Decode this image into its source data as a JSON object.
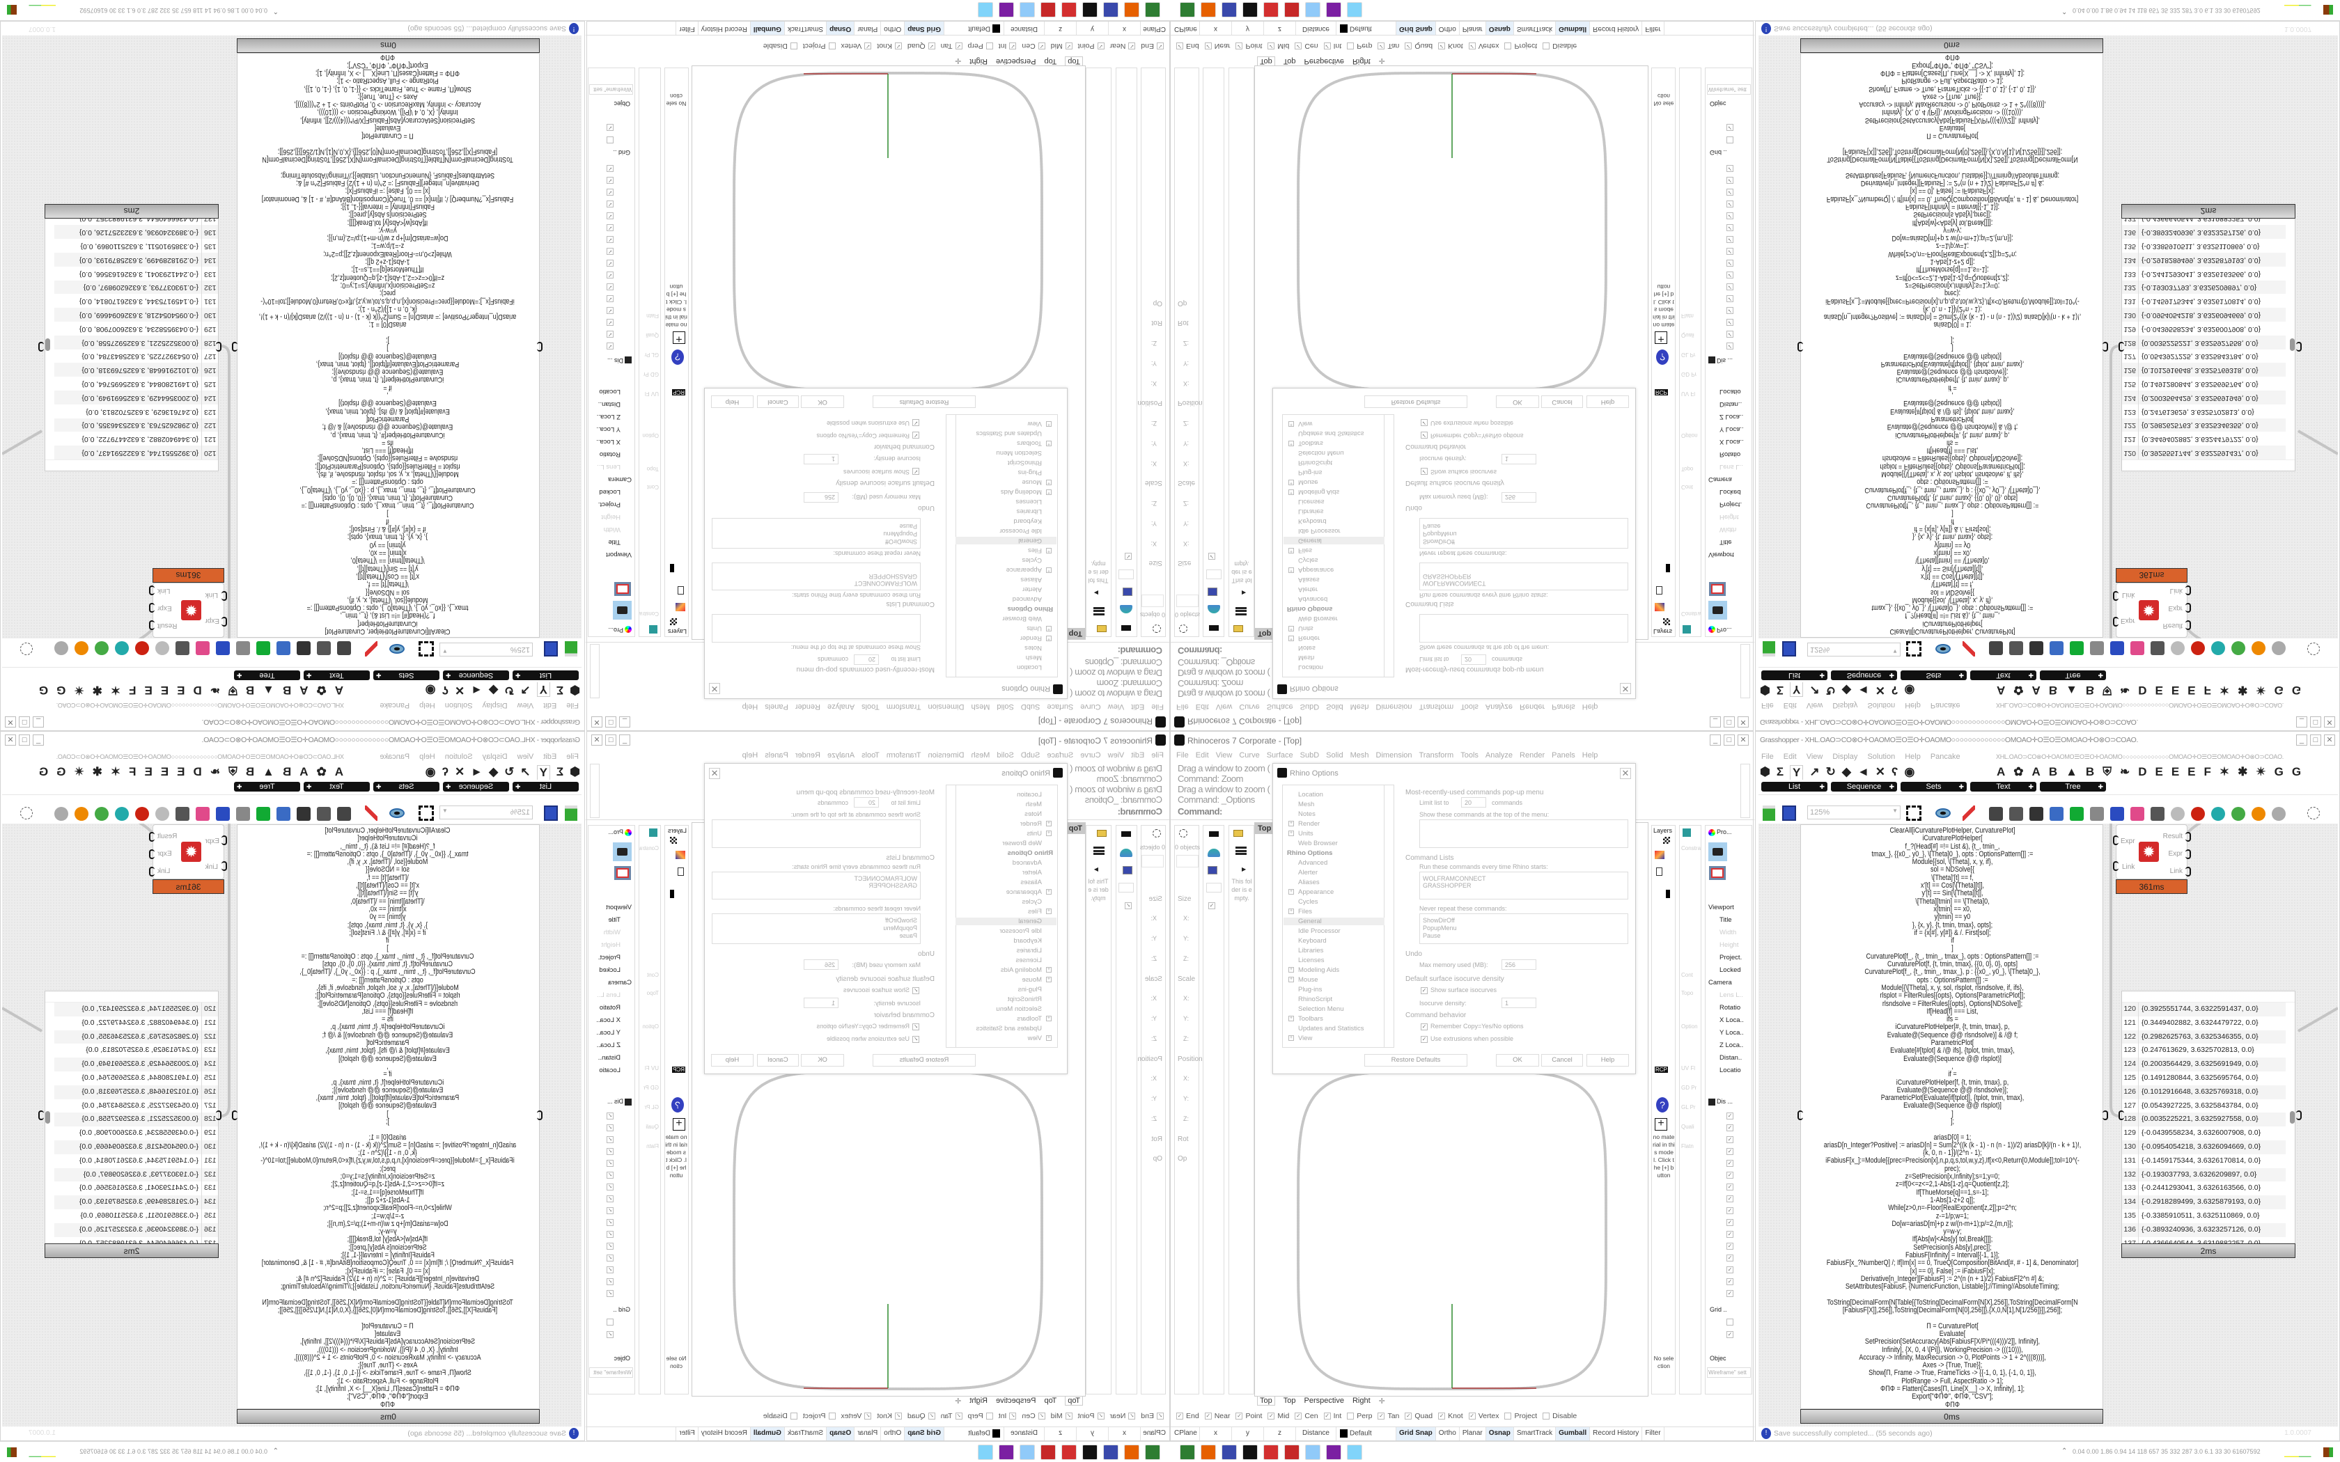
{
  "rhino": {
    "title": "Rhinoceros 7 Corporate - [Top]",
    "menu": [
      "File",
      "Edit",
      "View",
      "Curve",
      "Surface",
      "SubD",
      "Solid",
      "Mesh",
      "Dimension",
      "Transform",
      "Tools",
      "Analyze",
      "Render",
      "Panels",
      "Help"
    ],
    "command_history": [
      "Drag a window to zoom (",
      "Command: Zoom",
      "Drag a window to zoom (",
      "Command: _Options"
    ],
    "command_prompt": "Command:",
    "viewport_label": "Top",
    "viewport_tabs": [
      "Top",
      "Top",
      "Perspective",
      "Right"
    ],
    "left_panels": {
      "object_count": "0 objects",
      "sections": [
        "Size",
        "Scale",
        "Position",
        "Rot",
        "Op"
      ],
      "axes": [
        "X:",
        "Y:",
        "Z:"
      ],
      "folder_empty": "This folder is empty."
    },
    "right_panels": {
      "layers_label": "Layers",
      "materials_label": "RCP",
      "no_material": "no material in this model. Click the [+] button",
      "no_selection": "No selection",
      "constraint_labels": [
        "Constra",
        "Cont",
        "Topo",
        "Option",
        "UV Fl",
        "GD Pr",
        "GL Pr",
        "Quali",
        "Flatn"
      ],
      "properties_tab": "Pro...",
      "properties_items": [
        "Viewport",
        "Title",
        "Width",
        "Height",
        "Project.",
        "Locked",
        "Camera",
        "Lens L..",
        "Rotatio",
        "X Loca..",
        "Y Loca..",
        "Z Loca..",
        "Distan..",
        "Locatio"
      ],
      "display_tab": "Dis ...",
      "grid_label": "Grid ..",
      "objects_label": "Objec",
      "wireframe_label": "Wireframe\" sett"
    },
    "osnaps": [
      {
        "label": "End",
        "checked": true
      },
      {
        "label": "Near",
        "checked": true
      },
      {
        "label": "Point",
        "checked": true
      },
      {
        "label": "Mid",
        "checked": true
      },
      {
        "label": "Cen",
        "checked": true
      },
      {
        "label": "Int",
        "checked": true
      },
      {
        "label": "Perp",
        "checked": false
      },
      {
        "label": "Tan",
        "checked": true
      },
      {
        "label": "Quad",
        "checked": true
      },
      {
        "label": "Knot",
        "checked": true
      },
      {
        "label": "Vertex",
        "checked": true
      },
      {
        "label": "Project",
        "checked": false
      },
      {
        "label": "Disable",
        "checked": false
      }
    ],
    "status_bar": [
      {
        "label": "CPlane",
        "on": false
      },
      {
        "label": "x",
        "on": false
      },
      {
        "label": "y",
        "on": false
      },
      {
        "label": "z",
        "on": false
      },
      {
        "label": "Distance",
        "on": false
      },
      {
        "label": "Default",
        "on": false,
        "swatch": "#000000"
      },
      {
        "label": "Grid Snap",
        "on": true
      },
      {
        "label": "Ortho",
        "on": false
      },
      {
        "label": "Planar",
        "on": false
      },
      {
        "label": "Osnap",
        "on": true
      },
      {
        "label": "SmartTrack",
        "on": false
      },
      {
        "label": "Gumball",
        "on": true
      },
      {
        "label": "Record History",
        "on": false
      },
      {
        "label": "Filter",
        "on": false
      }
    ]
  },
  "options_dialog": {
    "title": "Rhino Options",
    "tree": [
      {
        "label": "Location"
      },
      {
        "label": "Mesh"
      },
      {
        "label": "Notes"
      },
      {
        "label": "Render",
        "expand": true
      },
      {
        "label": "Units",
        "expand": true
      },
      {
        "label": "Web Browser"
      },
      {
        "label": "Rhino Options",
        "header": true
      },
      {
        "label": "Advanced"
      },
      {
        "label": "Alerter"
      },
      {
        "label": "Aliases"
      },
      {
        "label": "Appearance",
        "expand": true
      },
      {
        "label": "Cycles"
      },
      {
        "label": "Files",
        "expand": true
      },
      {
        "label": "General",
        "selected": true
      },
      {
        "label": "Idle Processor"
      },
      {
        "label": "Keyboard"
      },
      {
        "label": "Libraries"
      },
      {
        "label": "Licenses"
      },
      {
        "label": "Modeling Aids",
        "expand": true
      },
      {
        "label": "Mouse",
        "expand": true
      },
      {
        "label": "Plug-ins"
      },
      {
        "label": "RhinoScript"
      },
      {
        "label": "Selection Menu"
      },
      {
        "label": "Toolbars",
        "expand": true
      },
      {
        "label": "Updates and Statistics"
      },
      {
        "label": "View",
        "expand": true
      }
    ],
    "mru_heading": "Most-recently-used commands pop-up menu",
    "limit_label": "Limit list to",
    "limit_value": "20",
    "limit_suffix": "commands",
    "show_top_label": "Show these commands at the top of the menu:",
    "command_lists_heading": "Command Lists",
    "startup_label": "Run these commands every time Rhino starts:",
    "startup_commands": [
      "WOLFRAMCONNECT",
      "GRASSHOPPER"
    ],
    "never_repeat_label": "Never repeat these commands:",
    "never_repeat": [
      "ShowDirOff",
      "PopupMenu",
      "Pause"
    ],
    "undo_heading": "Undo",
    "max_memory_label": "Max memory used (MB):",
    "max_memory_value": "256",
    "isocurve_heading": "Default surface isocurve density",
    "show_isocurves_label": "Show surface isocurves",
    "isocurve_density_label": "Isocurve density:",
    "isocurve_density_value": "1",
    "behavior_heading": "Command behavior",
    "remember_copy_label": "Remember Copy=Yes/No options",
    "use_extrusions_label": "Use extrusions when possible",
    "restore_defaults": "Restore Defaults",
    "ok": "OK",
    "cancel": "Cancel",
    "help": "Help"
  },
  "grasshopper": {
    "title": "Grasshopper - XHL.OAO⊃CO⊗O✛OAOMO☰O☰O✛OAOMO○○○○○○○○○○○○○OMOAO✛O☰O☰OMOAO✛O⊗O⊃COAO.",
    "menu": [
      "File",
      "Edit",
      "View",
      "Display",
      "Solution",
      "Help",
      "Pancake"
    ],
    "document_name": "XHL.OAO⊃CO⊗O✛OAOMO☰O☰O✛OAOMO○○○○○○○○○○○○○OMOAO✛O☰O☰OMOAO✛O⊗O⊃COAO.",
    "tab_icons_left": [
      "⬢",
      "Σ",
      "Y",
      "↗",
      "↻",
      "◆",
      "◄",
      "✕",
      "ʕ",
      "◉"
    ],
    "tab_icons_right": [
      "A",
      "✿",
      "A",
      "B",
      "▲",
      "B",
      "⛨",
      "❧",
      "D",
      "E",
      "E",
      "E",
      "F",
      "✶",
      "✱",
      "✴",
      "G",
      "G"
    ],
    "subtabs": [
      "List",
      "Sequence",
      "Sets",
      "Text",
      "Tree"
    ],
    "zoom_level": "125%",
    "code_panel_lines": [
      "ClearAll[iCurvaturePlotHelper, CurvaturePlot]",
      "iCurvaturePlotHelper[",
      "f_?(Head[#] =!= List &), {t_, tmin_,",
      "tmax_}, {{x0_, y0_}, \\[Theta]0_}, opts : OptionsPattern[]] :=",
      "Module[{sol, \\[Theta], x, y, if},",
      "sol = NDSolve[{",
      "\\[Theta]'[t] == f,",
      "x'[t] == Cos[\\[Theta][t]],",
      "y'[t] == Sin[\\[Theta][t]],",
      "\\[Theta][tmin] == \\[Theta]0,",
      "x[tmin] == x0,",
      "y[tmin] == y0",
      "}, {x, y}, {t, tmin, tmax}, opts];",
      "if = {x[#], y[#]} & /. First[sol];",
      "if",
      "]",
      "CurvaturePlot[f_, {t_, tmin_, tmax_}, opts : OptionsPattern[]] :=",
      "CurvaturePlot[f, {t, tmin, tmax}, {{0, 0}, 0}, opts]",
      "CurvaturePlot[f_, {t_, tmin_, tmax_}, p : {{x0_, y0_}, \\[Theta]0_},",
      "opts : OptionsPattern[]] :=",
      "Module[{\\[Theta], x, y, sol, rlsplot, rlsndsolve, if, ifs},",
      "rlsplot = FilterRules[{opts}, Options[ParametricPlot]];",
      "rlsndsolve = FilterRules[{opts}, Options[NDSolve]];",
      "If[Head[f] === List,",
      "ifs =",
      "iCurvaturePlotHelper[#, {t, tmin, tmax}, p,",
      "Evaluate@(Sequence @@ rlsndsolve)] & /@ f;",
      "ParametricPlot[",
      "Evaluate[#[tplot] & /@ ifs], {tplot, tmin, tmax},",
      "Evaluate@(Sequence @@ rlsplot)]",
      ",",
      "if =",
      "iCurvaturePlotHelper[f, {t, tmin, tmax}, p,",
      "Evaluate@(Sequence @@ rlsndsolve)];",
      "ParametricPlot[Evaluate[if[tplot]], {tplot, tmin, tmax},",
      "Evaluate@(Sequence @@ rlsplot)]",
      "]",
      "];",
      "",
      "ariasD[0] = 1;",
      "ariasD[n_Integer?Positive] := ariasD[n] = Sum[2^((k (k - 1) - n (n - 1))/2) ariasD[k]/(n - k + 1)!,",
      "{k, 0, n - 1}]/(2^n - 1);",
      "iFabiusF[x_]:=Module[{prec=Precision[x],n,p,q,s,tol,w,y,z},If[x<0,Return[0,Module]];tol=10^(-",
      "prec);",
      "z=SetPrecision[x,Infinity];s=1;y=0;",
      "z=If[0<=z<=2,1-Abs[1-z],q=Quotient[z,2];",
      "If[ThueMorse[q]==1,s=-1];",
      "1-Abs[1-z+2 q]];",
      "While[z>0,n=-Floor[RealExponent[z,2]];p=2^n;",
      "z-=1/p;w=1;",
      "Do[w=ariasD[m]+p z w/(n-m+1);p/=2,{m,n}];",
      "y=w-y;",
      "If[Abs[w]<Abs[y] tol,Break[]]];",
      "SetPrecision[s Abs[y],prec]];",
      "FabiusF[Infinity] = Interval[{-1, 1}];",
      "FabiusF[x_?NumberQ] /; If[Im[x] == 0, TrueQ[Composition[BitAnd[#, # - 1] &, Denominator]",
      "[x] == 0], False] := iFabiusF[x];",
      "Derivative[n_Integer][FabiusF] := 2^(n (n + 1)/2) FabiusF[2^n #] &;",
      "SetAttributes[FabiusF, {NumericFunction, Listable}];//Timing//AbsoluteTiming;",
      "",
      "ToString[DecimalForm[N[Table[{ToString[DecimalForm[N[X],256]],ToString[DecimalForm[N",
      "[FabiusF[X]],256]],ToString[DecimalForm[N[0],256]]},{X,0,N[1],N[1/256]}]],256]];",
      "",
      "Π = CurvaturePlot[",
      "Evaluate[",
      "SetPrecision[SetAccuracy[Abs[FabiusF[X/Pi*(((4)))/2]], Infinity],",
      "Infinity], {X, 0, 4 \\[Pi]}, WorkingPrecision -> (((10))),",
      "Accuracy -> Infinity, MaxRecursion -> 0, PlotPoints -> 1 + 2^(((8)))],",
      "Axes -> {True, True}];",
      "Show[Π, Frame -> True, FrameTicks -> {{-1, 0, 1}, {-1, 0, 1}},",
      "PlotRange -> Full, AspectRatio -> 1];",
      "ΦΠΦ = Flatten[Cases[Π, Line[X__] -> X, Infinity], 1];",
      "Export[\"ΦΠΦ\", ΦΠΦ, \"CSV\"];",
      "ΦΠΦ"
    ],
    "code_panel_time": "0ms",
    "component": {
      "inputs": [
        "Expr",
        "Link"
      ],
      "outputs": [
        "Result",
        "Expr",
        "Link"
      ],
      "time": "361ms",
      "icon_color": "#d42a2a",
      "time_color": "#d9622b"
    },
    "list_panel": {
      "rows": [
        {
          "index": "120",
          "value": "{0.3925551744, 3.6322591437, 0.0}"
        },
        {
          "index": "121",
          "value": "{0.3449402882, 3.6324479722, 0.0}"
        },
        {
          "index": "122",
          "value": "{0.2982625763, 3.6325346355, 0.0}"
        },
        {
          "index": "123",
          "value": "{0.247613629, 3.6325702813, 0.0}"
        },
        {
          "index": "124",
          "value": "{0.2003564429, 3.6325691949, 0.0}"
        },
        {
          "index": "125",
          "value": "{0.1491280844, 3.6325695764, 0.0}"
        },
        {
          "index": "126",
          "value": "{0.1012916648, 3.6325769318, 0.0}"
        },
        {
          "index": "127",
          "value": "{0.0543927225, 3.6325843784, 0.0}"
        },
        {
          "index": "128",
          "value": "{0.0035225221, 3.6325927558, 0.0}"
        },
        {
          "index": "129",
          "value": "{-0.0439558234, 3.6326007908, 0.0}"
        },
        {
          "index": "130",
          "value": "{-0.0954054218, 3.6326094669, 0.0}"
        },
        {
          "index": "131",
          "value": "{-0.1459175344, 3.6326170814, 0.0}"
        },
        {
          "index": "132",
          "value": "{-0.193037793, 3.6326209897, 0.0}"
        },
        {
          "index": "133",
          "value": "{-0.2441293041, 3.6326163566, 0.0}"
        },
        {
          "index": "134",
          "value": "{-0.2918289499, 3.6325879193, 0.0}"
        },
        {
          "index": "135",
          "value": "{-0.3385910511, 3.6325110869, 0.0}"
        },
        {
          "index": "136",
          "value": "{-0.3893240936, 3.6323257126, 0.0}"
        },
        {
          "index": "137",
          "value": "{-0.4366640544, 3.6319882257, 0.0}"
        }
      ],
      "time": "2ms",
      "scroll_fraction": 0.5
    },
    "status_message": "Save successfully completed... (55 seconds ago)",
    "version": "1.0.0007"
  },
  "taskbar": {
    "apps": [
      {
        "icon": "terminal-icon",
        "color": "#2e7d32"
      },
      {
        "icon": "firefox-icon",
        "color": "#e66000"
      },
      {
        "icon": "floppy-icon",
        "color": "#3949ab"
      },
      {
        "icon": "rhino-icon",
        "color": "#111111"
      },
      {
        "icon": "mathematica-icon",
        "color": "#d32f2f"
      },
      {
        "icon": "wolfram-icon",
        "color": "#c62828"
      },
      {
        "icon": "notepad-icon",
        "color": "#90caf9"
      },
      {
        "icon": "discord-icon",
        "color": "#7b1fa2"
      },
      {
        "icon": "paint-icon",
        "color": "#81d4fa"
      }
    ],
    "tray_stats": "0.04 0.00 1.86 0.94 14 118 657 35 332 287 3.0 6.1 33 30 61607592"
  }
}
